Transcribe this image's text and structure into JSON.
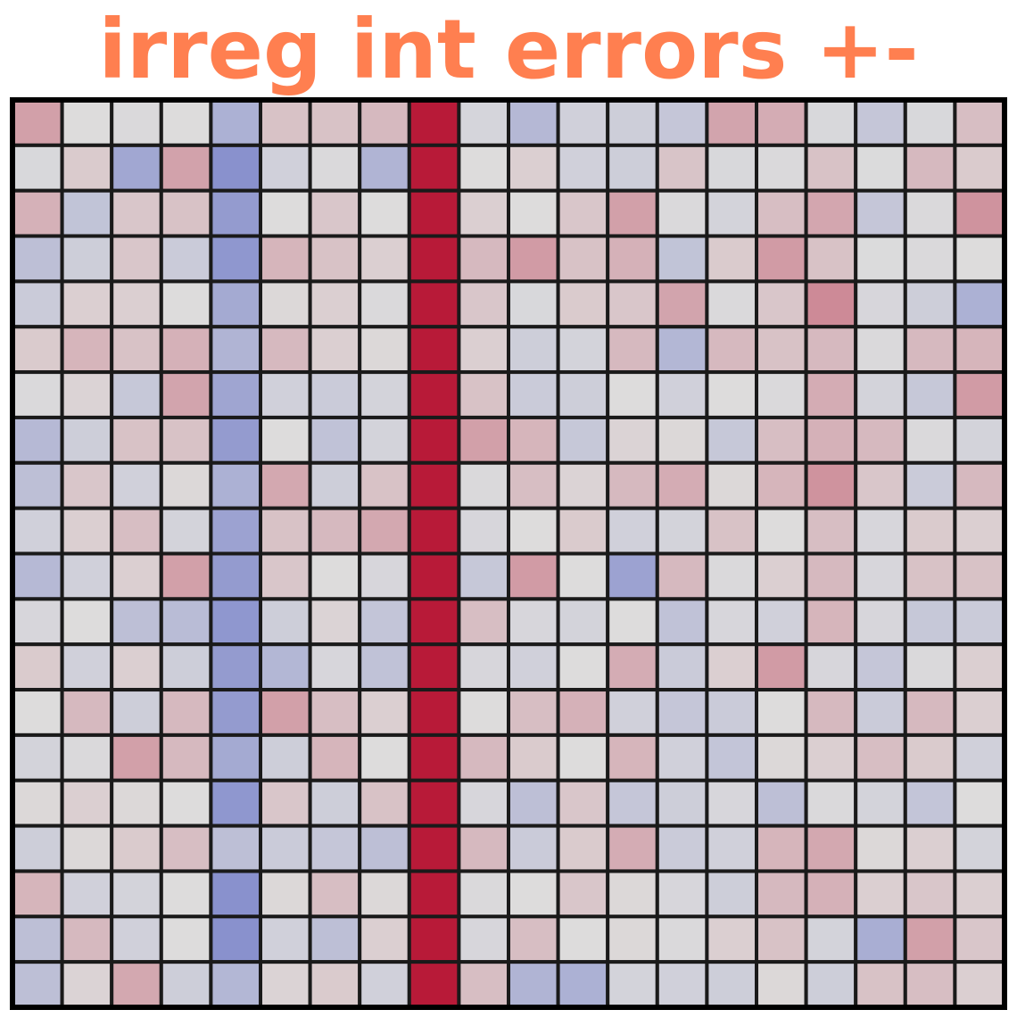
{
  "chart_data": {
    "type": "heatmap",
    "title": "irreg int errors +-",
    "title_color": "#ff7f50",
    "rows": 20,
    "cols": 20,
    "color_scale": {
      "min": -1,
      "max": 1,
      "negative": "#3b4cc0",
      "neutral": "#dddcdc",
      "positive": "#b40426"
    },
    "grid_color": "#1a1a1a",
    "values": [
      [
        0.28,
        0.0,
        -0.02,
        0.0,
        -0.3,
        0.12,
        0.12,
        0.16,
        0.9,
        -0.05,
        -0.25,
        -0.08,
        -0.1,
        -0.15,
        0.26,
        0.22,
        -0.03,
        -0.15,
        -0.03,
        0.14
      ],
      [
        -0.03,
        0.08,
        -0.37,
        0.27,
        -0.52,
        -0.08,
        -0.02,
        -0.28,
        0.9,
        0.0,
        0.06,
        -0.08,
        -0.1,
        0.11,
        -0.03,
        -0.02,
        0.12,
        -0.01,
        0.16,
        0.08
      ],
      [
        0.2,
        -0.17,
        0.1,
        0.12,
        -0.45,
        0.0,
        0.1,
        0.0,
        0.9,
        0.06,
        0.0,
        0.1,
        0.28,
        -0.02,
        -0.06,
        0.14,
        0.25,
        -0.15,
        -0.02,
        0.34
      ],
      [
        -0.2,
        -0.1,
        0.1,
        -0.12,
        -0.48,
        0.18,
        0.12,
        0.06,
        0.9,
        0.16,
        0.3,
        0.12,
        0.2,
        -0.17,
        0.08,
        0.3,
        0.12,
        -0.01,
        -0.02,
        0.0
      ],
      [
        -0.12,
        0.06,
        0.06,
        0.0,
        -0.35,
        0.02,
        0.06,
        -0.02,
        0.9,
        0.1,
        -0.03,
        0.08,
        0.1,
        0.26,
        -0.02,
        0.1,
        0.38,
        -0.04,
        -0.1,
        -0.3
      ],
      [
        0.08,
        0.18,
        0.12,
        0.2,
        -0.28,
        0.16,
        0.06,
        0.02,
        0.9,
        0.06,
        -0.1,
        -0.06,
        0.16,
        -0.26,
        0.16,
        0.12,
        0.16,
        -0.02,
        0.16,
        0.18
      ],
      [
        -0.02,
        0.04,
        -0.14,
        0.26,
        -0.38,
        -0.08,
        -0.12,
        -0.06,
        0.9,
        0.12,
        -0.12,
        -0.1,
        0.0,
        -0.08,
        0.0,
        -0.02,
        0.22,
        -0.06,
        -0.14,
        0.3
      ],
      [
        -0.24,
        -0.1,
        0.12,
        0.12,
        -0.45,
        0.0,
        -0.18,
        -0.06,
        0.9,
        0.28,
        0.18,
        -0.14,
        0.04,
        0.02,
        -0.14,
        0.14,
        0.2,
        0.16,
        -0.02,
        -0.06
      ],
      [
        -0.2,
        0.1,
        -0.08,
        0.02,
        -0.3,
        0.24,
        -0.1,
        0.12,
        0.9,
        -0.02,
        0.14,
        0.04,
        0.16,
        0.22,
        0.02,
        0.18,
        0.34,
        0.1,
        -0.12,
        0.16
      ],
      [
        -0.08,
        0.06,
        0.14,
        -0.06,
        -0.4,
        0.12,
        0.16,
        0.24,
        0.9,
        -0.04,
        0.0,
        0.08,
        -0.08,
        -0.06,
        0.12,
        0.0,
        0.14,
        -0.04,
        0.08,
        0.06
      ],
      [
        -0.24,
        -0.08,
        0.06,
        0.28,
        -0.45,
        0.1,
        0.0,
        -0.04,
        0.9,
        -0.14,
        0.3,
        0.0,
        -0.4,
        0.16,
        -0.02,
        0.06,
        0.16,
        -0.04,
        0.12,
        0.12
      ],
      [
        -0.04,
        0.0,
        -0.2,
        -0.22,
        -0.48,
        -0.1,
        0.04,
        -0.16,
        0.9,
        0.14,
        -0.04,
        -0.06,
        0.0,
        -0.18,
        -0.04,
        -0.08,
        0.18,
        -0.04,
        -0.14,
        -0.12
      ],
      [
        0.08,
        -0.08,
        0.06,
        -0.1,
        -0.45,
        -0.26,
        -0.04,
        -0.18,
        0.9,
        -0.04,
        -0.08,
        0.0,
        0.22,
        -0.12,
        0.06,
        0.3,
        -0.04,
        -0.15,
        -0.02,
        0.06
      ],
      [
        0.0,
        0.16,
        -0.1,
        0.16,
        -0.45,
        0.28,
        0.14,
        0.06,
        0.9,
        0.0,
        0.14,
        0.2,
        -0.08,
        -0.15,
        -0.12,
        0.0,
        0.16,
        -0.12,
        0.16,
        0.06
      ],
      [
        -0.06,
        -0.02,
        0.28,
        0.16,
        -0.35,
        -0.1,
        0.18,
        0.0,
        0.9,
        0.16,
        0.08,
        0.0,
        0.18,
        -0.08,
        -0.16,
        0.02,
        0.06,
        0.14,
        0.08,
        -0.08
      ],
      [
        0.02,
        0.06,
        0.02,
        0.0,
        -0.48,
        0.1,
        -0.1,
        0.12,
        0.9,
        -0.04,
        -0.2,
        0.1,
        -0.15,
        -0.1,
        -0.04,
        -0.2,
        -0.02,
        -0.06,
        -0.16,
        0.0
      ],
      [
        -0.1,
        0.02,
        0.08,
        0.14,
        -0.2,
        -0.12,
        -0.15,
        -0.2,
        0.9,
        0.16,
        -0.12,
        0.08,
        0.22,
        -0.12,
        -0.08,
        0.18,
        0.24,
        0.02,
        0.06,
        -0.06
      ],
      [
        0.18,
        -0.08,
        -0.06,
        0.0,
        -0.52,
        0.02,
        0.14,
        0.02,
        0.9,
        -0.02,
        0.0,
        0.1,
        0.02,
        -0.04,
        -0.1,
        0.16,
        0.2,
        0.06,
        0.1,
        0.06
      ],
      [
        -0.2,
        0.16,
        -0.08,
        0.0,
        -0.52,
        -0.08,
        -0.2,
        0.06,
        0.9,
        -0.04,
        0.14,
        0.0,
        0.02,
        -0.02,
        0.06,
        0.12,
        -0.06,
        -0.32,
        0.28,
        0.1
      ],
      [
        -0.2,
        0.04,
        0.24,
        -0.1,
        -0.26,
        0.04,
        0.08,
        -0.08,
        0.9,
        0.14,
        -0.28,
        -0.3,
        -0.06,
        -0.08,
        -0.1,
        0.02,
        -0.1,
        0.12,
        0.14,
        0.06
      ]
    ]
  }
}
